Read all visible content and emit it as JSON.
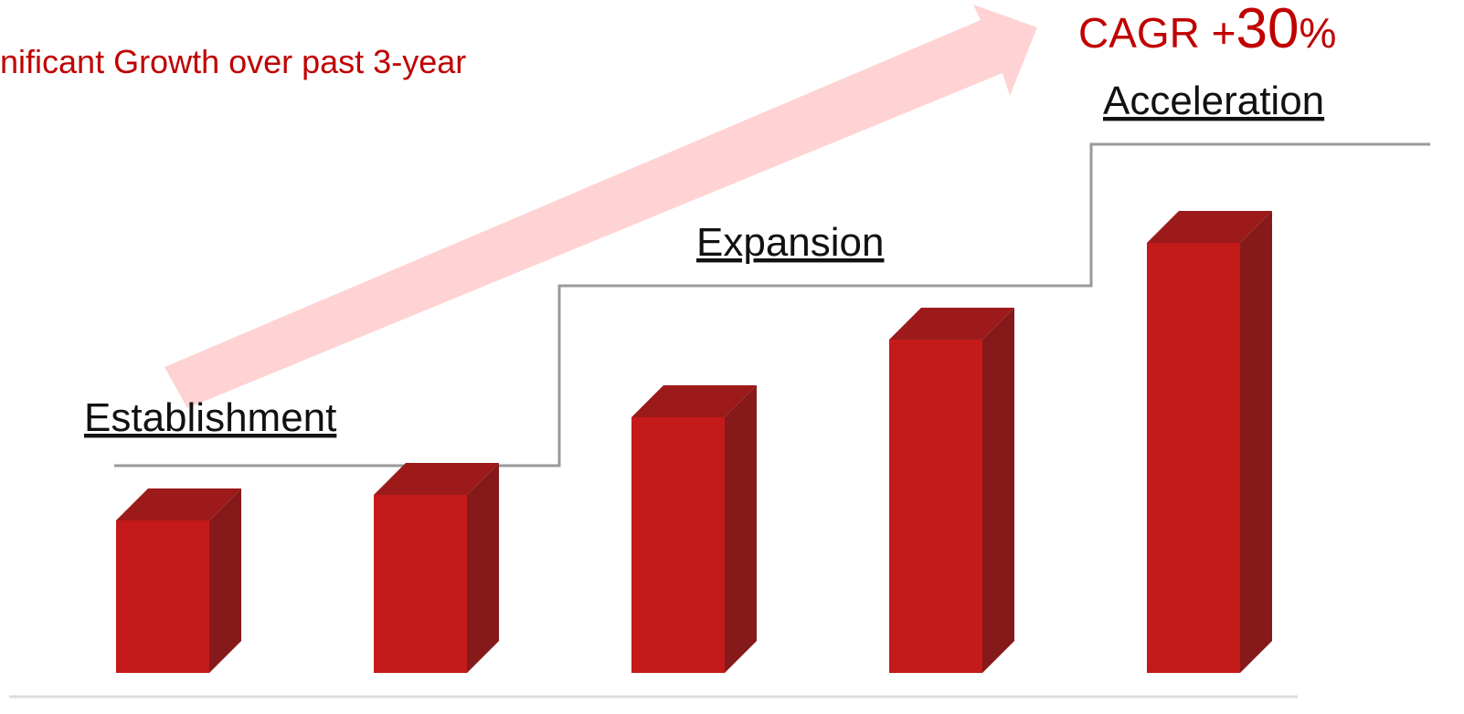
{
  "chart_data": {
    "type": "bar3d",
    "title": "nificant Growth over past 3-year",
    "annotations": [
      "CAGR +",
      "30",
      "%"
    ],
    "stages": [
      "Establishment",
      "Expansion",
      "Acceleration"
    ],
    "categories": [
      null,
      null,
      null,
      null,
      null
    ],
    "values": [
      167,
      195,
      280,
      365,
      471
    ],
    "color": "#c41a1a",
    "ylim": [
      0,
      500
    ]
  }
}
